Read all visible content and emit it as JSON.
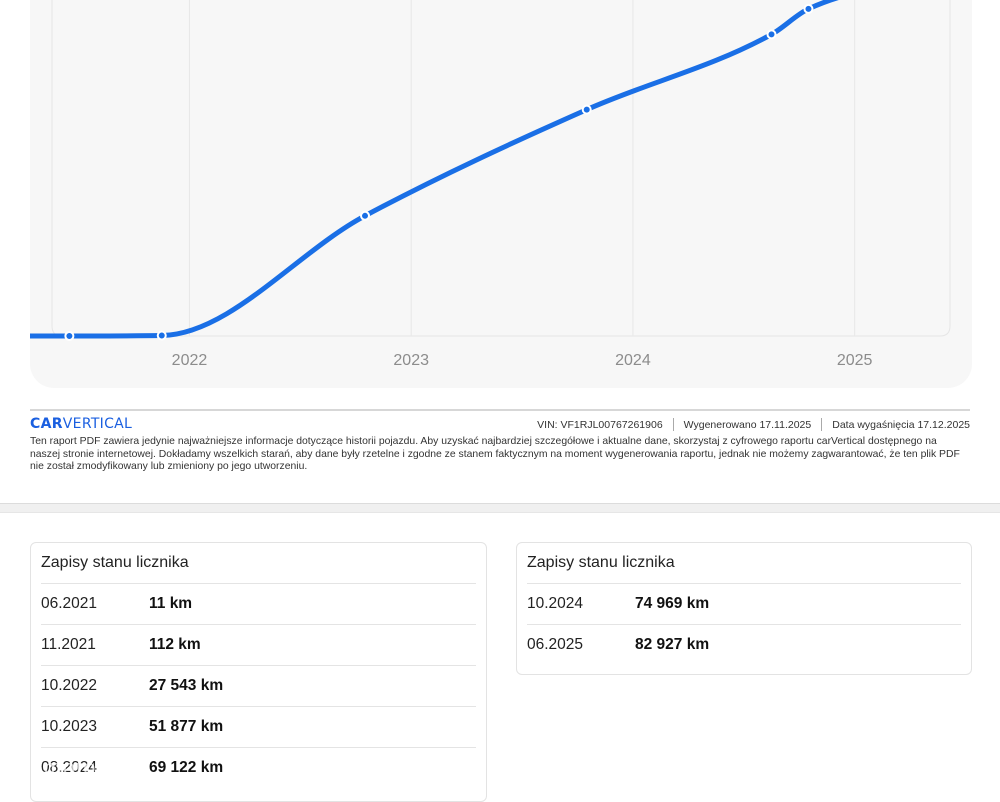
{
  "chart": {
    "x_ticks": [
      "2022",
      "2023",
      "2024",
      "2025"
    ],
    "line_color": "#1a6fe6",
    "points": [
      {
        "date": "06.2021",
        "km": 11
      },
      {
        "date": "11.2021",
        "km": 112
      },
      {
        "date": "10.2022",
        "km": 27543
      },
      {
        "date": "10.2023",
        "km": 51877
      },
      {
        "date": "08.2024",
        "km": 69122
      },
      {
        "date": "10.2024",
        "km": 74969
      },
      {
        "date": "06.2025",
        "km": 82927
      }
    ]
  },
  "footer": {
    "logo_prefix": "CAR",
    "logo_suffix": "VERTICAL",
    "vin": "VIN:  VF1RJL00767261906",
    "generated": "Wygenerowano  17.11.2025",
    "expires": "Data wygaśnięcia  17.12.2025",
    "disclaimer": "Ten raport PDF zawiera jedynie najważniejsze informacje dotyczące historii pojazdu. Aby uzyskać najbardziej szczegółowe i aktualne dane, skorzystaj z cyfrowego raportu carVertical dostępnego na naszej stronie internetowej. Dokładamy wszelkich starań, aby dane były rzetelne i zgodne ze stanem faktycznym na moment wygenerowania raportu, jednak nie możemy zagwarantować, że ten plik PDF nie został zmodyfikowany lub zmieniony po jego utworzeniu."
  },
  "odometer_left": {
    "title": "Zapisy stanu licznika",
    "rows": [
      {
        "date": "06.2021",
        "km": "11 km"
      },
      {
        "date": "11.2021",
        "km": "112 km"
      },
      {
        "date": "10.2022",
        "km": "27 543 km"
      },
      {
        "date": "10.2023",
        "km": "51 877 km"
      },
      {
        "date": "08.2024",
        "km": "69 122 km"
      }
    ]
  },
  "odometer_right": {
    "title": "Zapisy stanu licznika",
    "rows": [
      {
        "date": "10.2024",
        "km": "74 969 km"
      },
      {
        "date": "06.2025",
        "km": "82 927 km"
      }
    ]
  },
  "watermark": "otomoto"
}
